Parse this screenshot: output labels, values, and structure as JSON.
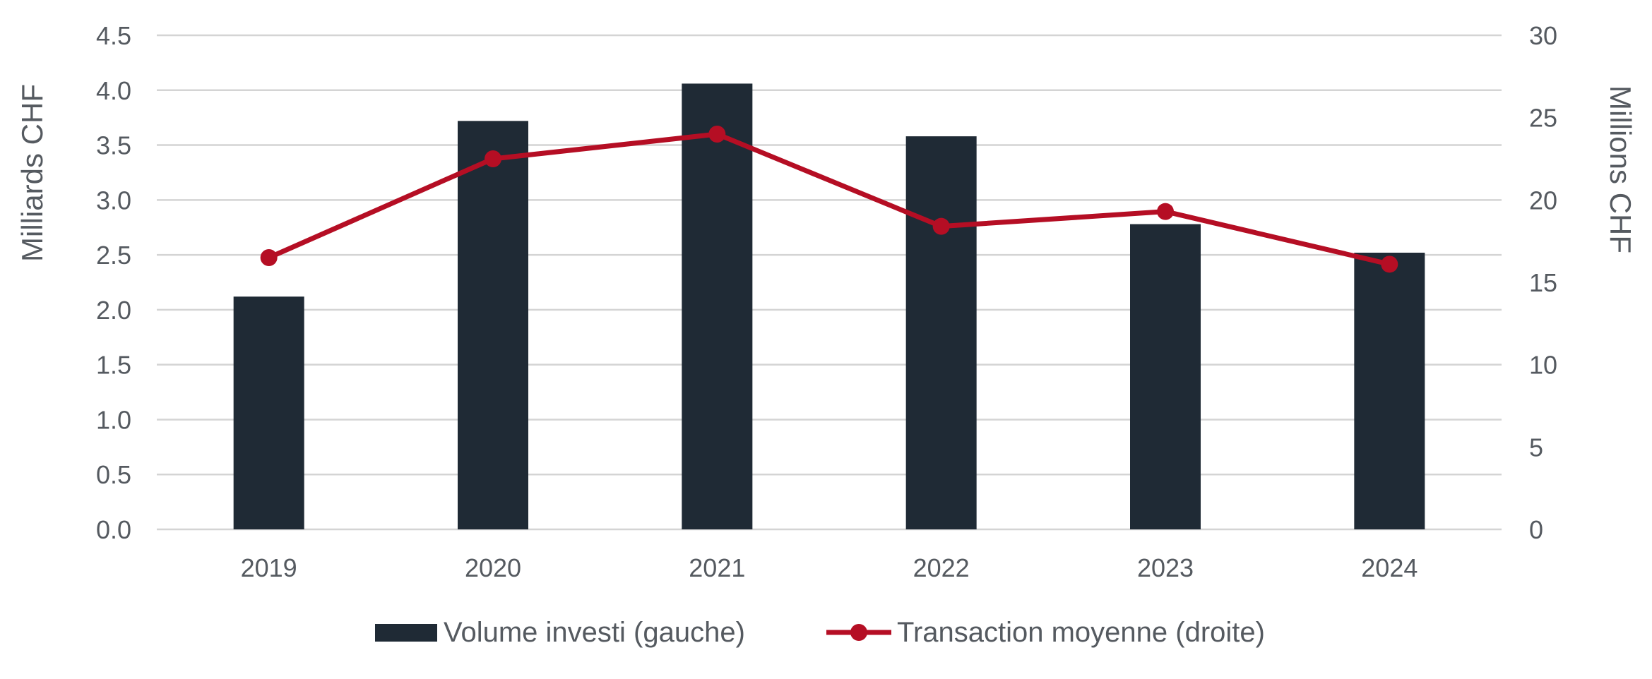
{
  "chart_data": {
    "type": "bar",
    "categories": [
      "2019",
      "2020",
      "2021",
      "2022",
      "2023",
      "2024"
    ],
    "series": [
      {
        "name": "Volume investi (gauche)",
        "type": "bar",
        "axis": "left",
        "values": [
          2.12,
          3.72,
          4.06,
          3.58,
          2.78,
          2.52
        ]
      },
      {
        "name": "Transaction moyenne (droite)",
        "type": "line",
        "axis": "right",
        "values": [
          16.5,
          22.5,
          24.0,
          18.4,
          19.3,
          16.1
        ]
      }
    ],
    "ylabel": "Milliards CHF",
    "ylabel_right": "Millions CHF",
    "ylim": [
      0,
      4.5
    ],
    "ylim_right": [
      0,
      30
    ],
    "yticks": [
      "0.0",
      "0.5",
      "1.0",
      "1.5",
      "2.0",
      "2.5",
      "3.0",
      "3.5",
      "4.0",
      "4.5"
    ],
    "yticks_right": [
      "0",
      "5",
      "10",
      "15",
      "20",
      "25",
      "30"
    ],
    "grid": true,
    "legend_position": "bottom",
    "colors": {
      "bar": "#1f2a35",
      "line": "#b50e24",
      "grid": "#d4d4d4",
      "text": "#555a60"
    }
  }
}
